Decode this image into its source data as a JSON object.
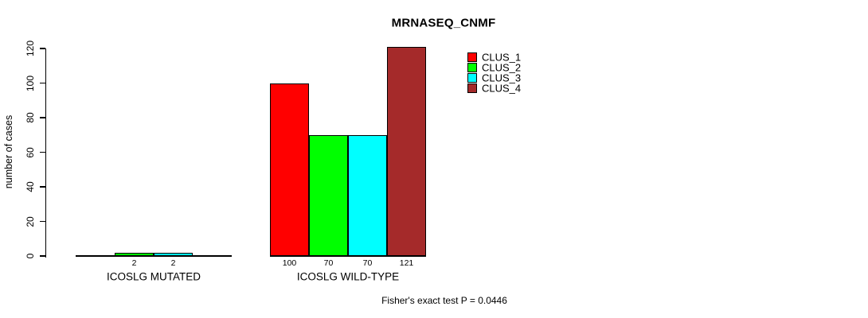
{
  "chart_data": {
    "type": "bar",
    "title": "MRNASEQ_CNMF",
    "xlabel": "",
    "ylabel": "number of cases",
    "ylim": [
      0,
      120
    ],
    "yticks": [
      0,
      20,
      40,
      60,
      80,
      100,
      120
    ],
    "grid": false,
    "legend_position": "top-right",
    "categories": [
      "ICOSLG MUTATED",
      "ICOSLG WILD-TYPE"
    ],
    "series": [
      {
        "name": "CLUS_1",
        "color": "#FF0000",
        "values": [
          null,
          100
        ]
      },
      {
        "name": "CLUS_2",
        "color": "#00FF00",
        "values": [
          2,
          70
        ]
      },
      {
        "name": "CLUS_3",
        "color": "#00FFFF",
        "values": [
          2,
          70
        ]
      },
      {
        "name": "CLUS_4",
        "color": "#A52A2A",
        "values": [
          null,
          121
        ]
      }
    ],
    "bar_value_labels": [
      [
        "2",
        "2"
      ],
      [
        "100",
        "70",
        "70",
        "121"
      ]
    ],
    "annotation": "Fisher's exact test P = 0.0446"
  },
  "colors": {
    "background": "#FFFFFF",
    "axis": "#000000",
    "text": "#000000"
  }
}
